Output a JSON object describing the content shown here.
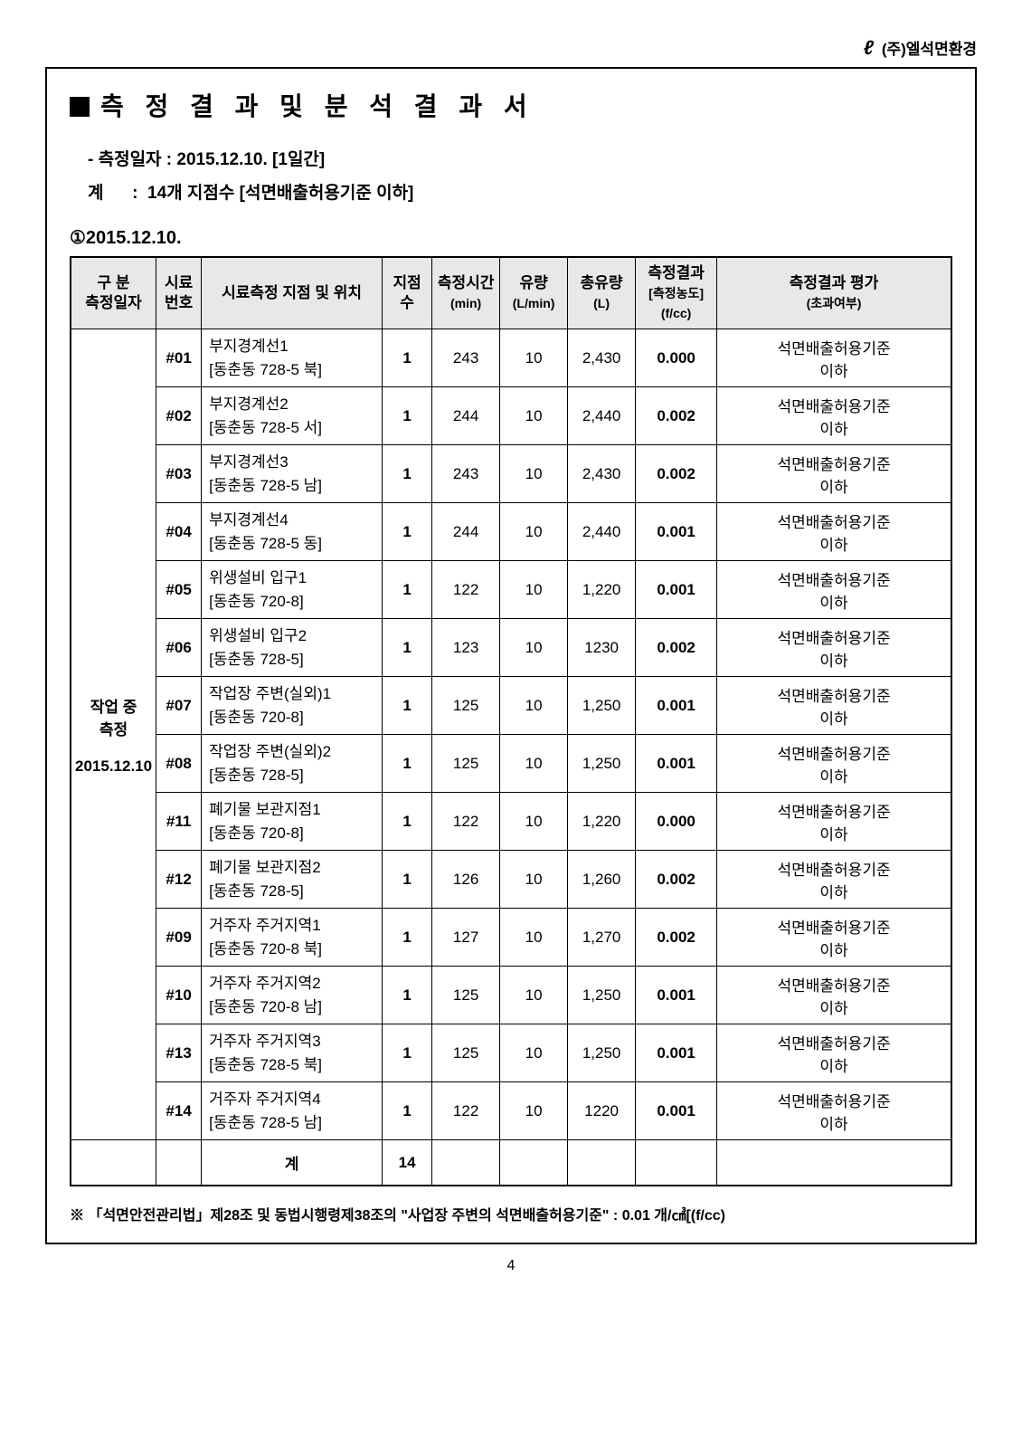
{
  "company_logo_text": "(주)엘석면환경",
  "report_title": "측 정 결 과 및 분 석 결 과 서",
  "measure_date_line": "- 측정일자 : 2015.12.10. [1일간]",
  "total_line": "계      :  14개 지점수 [석면배출허용기준 이하]",
  "section_date": "①2015.12.10.",
  "headers": {
    "category": "구 분",
    "category_sub": "측정일자",
    "sample_no": "시료",
    "sample_no_sub": "번호",
    "location": "시료측정 지점 및 위치",
    "points": "지점수",
    "time": "측정시간",
    "time_sub": "(min)",
    "flow": "유량",
    "flow_sub": "(L/min)",
    "total_flow": "총유량",
    "total_flow_sub": "(L)",
    "result": "측정결과",
    "result_sub1": "[측정농도]",
    "result_sub2": "(f/cc)",
    "eval": "측정결과 평가",
    "eval_sub": "(초과여부)"
  },
  "category_label_l1": "작업 중",
  "category_label_l2": "측정",
  "category_label_l3": "2015.12.10",
  "rows": [
    {
      "no": "#01",
      "loc1": "부지경계선1",
      "loc2": "[동춘동 728-5 북]",
      "pts": "1",
      "time": "243",
      "flow": "10",
      "total": "2,430",
      "result": "0.000",
      "eval1": "석면배출허용기준",
      "eval2": "이하"
    },
    {
      "no": "#02",
      "loc1": "부지경계선2",
      "loc2": "[동춘동 728-5 서]",
      "pts": "1",
      "time": "244",
      "flow": "10",
      "total": "2,440",
      "result": "0.002",
      "eval1": "석면배출허용기준",
      "eval2": "이하"
    },
    {
      "no": "#03",
      "loc1": "부지경계선3",
      "loc2": "[동춘동 728-5 남]",
      "pts": "1",
      "time": "243",
      "flow": "10",
      "total": "2,430",
      "result": "0.002",
      "eval1": "석면배출허용기준",
      "eval2": "이하"
    },
    {
      "no": "#04",
      "loc1": "부지경계선4",
      "loc2": "[동춘동 728-5 동]",
      "pts": "1",
      "time": "244",
      "flow": "10",
      "total": "2,440",
      "result": "0.001",
      "eval1": "석면배출허용기준",
      "eval2": "이하"
    },
    {
      "no": "#05",
      "loc1": "위생설비 입구1",
      "loc2": "[동춘동 720-8]",
      "pts": "1",
      "time": "122",
      "flow": "10",
      "total": "1,220",
      "result": "0.001",
      "eval1": "석면배출허용기준",
      "eval2": "이하"
    },
    {
      "no": "#06",
      "loc1": "위생설비 입구2",
      "loc2": "[동춘동 728-5]",
      "pts": "1",
      "time": "123",
      "flow": "10",
      "total": "1230",
      "result": "0.002",
      "eval1": "석면배출허용기준",
      "eval2": "이하"
    },
    {
      "no": "#07",
      "loc1": "작업장 주변(실외)1",
      "loc2": "[동춘동 720-8]",
      "pts": "1",
      "time": "125",
      "flow": "10",
      "total": "1,250",
      "result": "0.001",
      "eval1": "석면배출허용기준",
      "eval2": "이하"
    },
    {
      "no": "#08",
      "loc1": "작업장 주변(실외)2",
      "loc2": "[동춘동 728-5]",
      "pts": "1",
      "time": "125",
      "flow": "10",
      "total": "1,250",
      "result": "0.001",
      "eval1": "석면배출허용기준",
      "eval2": "이하"
    },
    {
      "no": "#11",
      "loc1": "폐기물 보관지점1",
      "loc2": "[동춘동 720-8]",
      "pts": "1",
      "time": "122",
      "flow": "10",
      "total": "1,220",
      "result": "0.000",
      "eval1": "석면배출허용기준",
      "eval2": "이하"
    },
    {
      "no": "#12",
      "loc1": "폐기물 보관지점2",
      "loc2": "[동춘동 728-5]",
      "pts": "1",
      "time": "126",
      "flow": "10",
      "total": "1,260",
      "result": "0.002",
      "eval1": "석면배출허용기준",
      "eval2": "이하"
    },
    {
      "no": "#09",
      "loc1": "거주자 주거지역1",
      "loc2": "[동춘동 720-8 북]",
      "pts": "1",
      "time": "127",
      "flow": "10",
      "total": "1,270",
      "result": "0.002",
      "eval1": "석면배출허용기준",
      "eval2": "이하"
    },
    {
      "no": "#10",
      "loc1": "거주자 주거지역2",
      "loc2": "[동춘동 720-8 남]",
      "pts": "1",
      "time": "125",
      "flow": "10",
      "total": "1,250",
      "result": "0.001",
      "eval1": "석면배출허용기준",
      "eval2": "이하"
    },
    {
      "no": "#13",
      "loc1": "거주자 주거지역3",
      "loc2": "[동춘동 728-5 북]",
      "pts": "1",
      "time": "125",
      "flow": "10",
      "total": "1,250",
      "result": "0.001",
      "eval1": "석면배출허용기준",
      "eval2": "이하"
    },
    {
      "no": "#14",
      "loc1": "거주자 주거지역4",
      "loc2": "[동춘동 728-5 남]",
      "pts": "1",
      "time": "122",
      "flow": "10",
      "total": "1220",
      "result": "0.001",
      "eval1": "석면배출허용기준",
      "eval2": "이하"
    }
  ],
  "sum_label": "계",
  "sum_points": "14",
  "footnote": "※ 「석면안전관리법」제28조 및 동법시행령제38조의 \"사업장 주변의 석면배출허용기준\" : 0.01 개/㎤[(f/cc)",
  "page_number": "4"
}
